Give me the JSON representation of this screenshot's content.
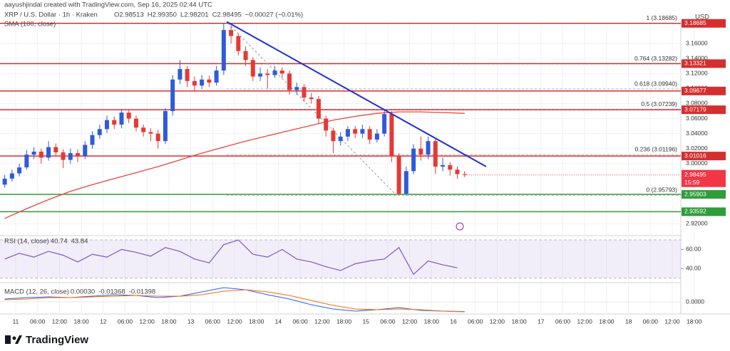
{
  "header": {
    "credit": "aayushjindal created with TradingView.com, Sep 16, 2025 02:44 UTC",
    "symbol": "XRP / U.S. Dollar · 1h · Kraken",
    "ohlc": [
      "O2.98513",
      "H2.99350",
      "L2.98201",
      "C2.98495",
      "−0.00027 (−0.01%)"
    ],
    "currency": "USD"
  },
  "chart_data": [
    {
      "type": "candlestick",
      "open": [
        2.972,
        2.98,
        2.987,
        2.995,
        3.012,
        3.016,
        3.008,
        3.022,
        3.015,
        3.005,
        3.014,
        3.01,
        3.025,
        3.038,
        3.046,
        3.058,
        3.052,
        3.068,
        3.06,
        3.048,
        3.042,
        3.04,
        3.03,
        3.07,
        3.112,
        3.126,
        3.11,
        3.104,
        3.112,
        3.108,
        3.124,
        3.178,
        3.17,
        3.15,
        3.138,
        3.116,
        3.12,
        3.118,
        3.124,
        3.12,
        3.098,
        3.102,
        3.088,
        3.086,
        3.06,
        3.044,
        3.03,
        3.036,
        3.046,
        3.04,
        3.046,
        3.032,
        3.04,
        3.066,
        3.01,
        2.96,
        2.99,
        3.02,
        3.012,
        3.03,
        2.996,
        2.998,
        2.992,
        2.986
      ],
      "high": [
        2.985,
        2.992,
        3.0,
        3.018,
        3.022,
        3.02,
        3.03,
        3.027,
        3.019,
        3.02,
        3.019,
        3.03,
        3.043,
        3.052,
        3.064,
        3.063,
        3.073,
        3.072,
        3.064,
        3.052,
        3.047,
        3.045,
        3.074,
        3.118,
        3.138,
        3.13,
        3.116,
        3.118,
        3.117,
        3.13,
        3.18685,
        3.184,
        3.174,
        3.156,
        3.142,
        3.128,
        3.126,
        3.13,
        3.128,
        3.124,
        3.108,
        3.106,
        3.094,
        3.09,
        3.064,
        3.048,
        3.042,
        3.05,
        3.05,
        3.052,
        3.05,
        3.046,
        3.072,
        3.07,
        3.014,
        2.996,
        3.026,
        3.036,
        3.036,
        3.034,
        3.008,
        3.002,
        2.996,
        2.99
      ],
      "low": [
        2.968,
        2.976,
        2.983,
        2.992,
        3.006,
        3.0,
        3.004,
        3.01,
        2.994,
        3.0,
        3.002,
        3.006,
        3.02,
        3.033,
        3.041,
        3.046,
        3.047,
        3.054,
        3.043,
        3.036,
        3.03,
        3.02,
        3.026,
        3.064,
        3.106,
        3.102,
        3.096,
        3.099,
        3.102,
        3.104,
        3.118,
        3.16,
        3.144,
        3.13,
        3.11,
        3.11,
        3.1,
        3.114,
        3.114,
        3.092,
        3.092,
        3.082,
        3.08,
        3.054,
        3.036,
        3.014,
        3.024,
        3.03,
        3.034,
        3.034,
        3.026,
        3.028,
        3.036,
        3.002,
        2.95793,
        2.958,
        2.986,
        3.004,
        3.006,
        2.986,
        2.99,
        2.984,
        2.98,
        2.982
      ],
      "close": [
        2.98,
        2.987,
        2.995,
        3.012,
        3.016,
        3.008,
        3.022,
        3.015,
        3.005,
        3.014,
        3.01,
        3.025,
        3.038,
        3.046,
        3.058,
        3.052,
        3.068,
        3.06,
        3.048,
        3.042,
        3.04,
        3.03,
        3.07,
        3.112,
        3.126,
        3.11,
        3.104,
        3.112,
        3.108,
        3.124,
        3.178,
        3.17,
        3.15,
        3.138,
        3.116,
        3.12,
        3.118,
        3.124,
        3.12,
        3.098,
        3.102,
        3.088,
        3.086,
        3.06,
        3.044,
        3.03,
        3.036,
        3.046,
        3.04,
        3.046,
        3.032,
        3.04,
        3.066,
        3.01,
        2.96,
        2.99,
        3.02,
        3.012,
        3.03,
        2.996,
        2.998,
        2.992,
        2.986,
        2.98495
      ],
      "up_color": "#2f5bd8",
      "down_color": "#e53935",
      "ylim": [
        2.905,
        3.199
      ],
      "yticks": [
        {
          "value": 2.92,
          "label": "2.92000"
        },
        {
          "value": 3.0,
          "label": "3.00000"
        },
        {
          "value": 3.02,
          "label": "3.02000"
        },
        {
          "value": 3.04,
          "label": "3.04000"
        },
        {
          "value": 3.06,
          "label": "3.06000"
        },
        {
          "value": 3.08,
          "label": "3.08000"
        },
        {
          "value": 3.1,
          "label": "3.10000"
        },
        {
          "value": 3.12,
          "label": "3.12000"
        },
        {
          "value": 3.14,
          "label": "3.14000"
        },
        {
          "value": 3.16,
          "label": "3.16000"
        }
      ],
      "x_labels": [
        "11",
        "06:00",
        "12:00",
        "18:00",
        "12",
        "06:00",
        "12:00",
        "18:00",
        "13",
        "06:00",
        "12:00",
        "18:00",
        "14",
        "06:00",
        "12:00",
        "18:00",
        "15",
        "06:00",
        "12:00",
        "18:00",
        "16",
        "06:00",
        "12:00",
        "18:00",
        "17",
        "06:00",
        "12:00",
        "18:00",
        "18",
        "06:00",
        "12:00",
        "18:00"
      ],
      "grid": true,
      "sma": {
        "name": "SMA (100, close)",
        "color": "#e8453c",
        "values": [
          2.927,
          2.94,
          2.952,
          2.963,
          2.972,
          2.98,
          2.988,
          2.996,
          3.005,
          3.014,
          3.022,
          3.03,
          3.037,
          3.044,
          3.051,
          3.058,
          3.063,
          3.067,
          3.069,
          3.069,
          3.068,
          3.067
        ]
      },
      "trendline": {
        "color": "#1f2fd6",
        "values": [
          3.189,
          2.996
        ]
      },
      "fib": [
        {
          "label": "1 (3.18685)",
          "price": 3.18685
        },
        {
          "label": "0.764 (3.13282)",
          "price": 3.13282
        },
        {
          "label": "0.618 (3.09940)",
          "price": 3.0994
        },
        {
          "label": "0.5 (3.07239)",
          "price": 3.07239
        },
        {
          "label": "0.236 (3.01196)",
          "price": 3.01196
        },
        {
          "label": "0 (2.95793)",
          "price": 2.95793
        }
      ],
      "price_lines": [
        {
          "price": 3.18685,
          "color": "#d32f2f"
        },
        {
          "price": 3.13321,
          "color": "#d32f2f"
        },
        {
          "price": 3.09677,
          "color": "#d32f2f"
        },
        {
          "price": 3.07179,
          "color": "#d32f2f"
        },
        {
          "price": 3.01016,
          "color": "#d32f2f"
        },
        {
          "price": 2.95903,
          "color": "#2e9d3a"
        },
        {
          "price": 2.93592,
          "color": "#2e9d3a"
        }
      ],
      "current": {
        "price": 2.98495,
        "countdown": "15:59",
        "color": "#f23645"
      }
    },
    {
      "type": "line",
      "title": "RSI (14, close)",
      "legend_values": [
        "40.74",
        "43.84"
      ],
      "values": [
        50,
        56,
        52,
        58,
        54,
        47,
        55,
        52,
        60,
        57,
        53,
        62,
        58,
        50,
        46,
        65,
        70,
        55,
        52,
        60,
        50,
        47,
        42,
        38,
        45,
        48,
        50,
        62,
        34,
        48,
        44,
        40.74
      ],
      "color": "#7e57c2",
      "band": [
        70,
        30
      ],
      "ylim": [
        26,
        73
      ],
      "yticks": [
        {
          "value": 60,
          "label": "60.00"
        },
        {
          "value": 40,
          "label": "40.00"
        }
      ]
    },
    {
      "type": "macd",
      "title": "MACD (12, 26, close)",
      "legend_values": [
        "0.00030",
        "-0.01368",
        "-0.01398"
      ],
      "series": [
        {
          "color": "#2962ff",
          "values": [
            0.004,
            0.006,
            0.007,
            0.006,
            0.008,
            0.01,
            0.009,
            0.006,
            0.008,
            0.014,
            0.02,
            0.017,
            0.01,
            0.004,
            -0.004,
            -0.01,
            -0.013,
            -0.011,
            -0.008,
            -0.012,
            -0.013,
            -0.01368
          ]
        },
        {
          "color": "#ff6d00",
          "values": [
            0.003,
            0.004,
            0.006,
            0.006,
            0.007,
            0.008,
            0.009,
            0.008,
            0.008,
            0.01,
            0.015,
            0.017,
            0.014,
            0.009,
            0.002,
            -0.005,
            -0.01,
            -0.011,
            -0.01,
            -0.011,
            -0.013,
            -0.01398
          ]
        }
      ],
      "ylim": [
        -0.016,
        0.026
      ],
      "yticks": [
        {
          "value": 0,
          "label": "0.0000"
        }
      ]
    }
  ],
  "footer": {
    "brand": "TradingView"
  }
}
